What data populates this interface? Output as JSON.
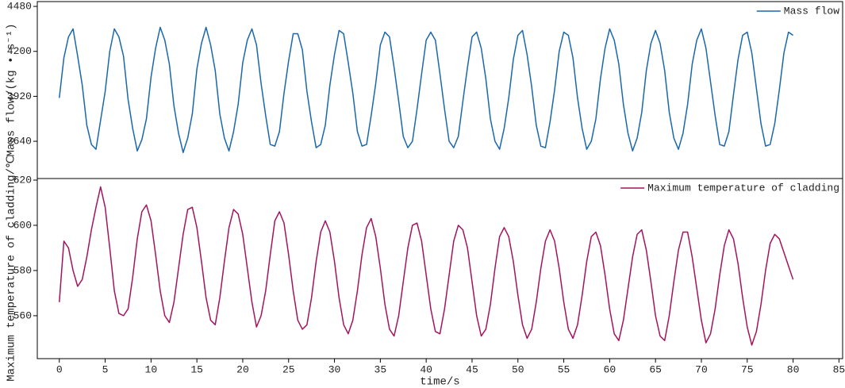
{
  "chart_data": [
    {
      "type": "line",
      "ylabel": "Mass flow/(kg • s⁻¹)",
      "legend": "upper right",
      "xlim": [
        -2.4,
        85.4
      ],
      "ylim": [
        3408,
        4510
      ],
      "yticks": [
        3640,
        3920,
        4200,
        4480
      ],
      "x": [
        0,
        0.5,
        1,
        1.5,
        2,
        2.5,
        3,
        3.5,
        4,
        4.5,
        5,
        5.5,
        6,
        6.5,
        7,
        7.5,
        8,
        8.5,
        9,
        9.5,
        10,
        10.5,
        11,
        11.5,
        12,
        12.5,
        13,
        13.5,
        14,
        14.5,
        15,
        15.5,
        16,
        16.5,
        17,
        17.5,
        18,
        18.5,
        19,
        19.5,
        20,
        20.5,
        21,
        21.5,
        22,
        22.5,
        23,
        23.5,
        24,
        24.5,
        25,
        25.5,
        26,
        26.5,
        27,
        27.5,
        28,
        28.5,
        29,
        29.5,
        30,
        30.5,
        31,
        31.5,
        32,
        32.5,
        33,
        33.5,
        34,
        34.5,
        35,
        35.5,
        36,
        36.5,
        37,
        37.5,
        38,
        38.5,
        39,
        39.5,
        40,
        40.5,
        41,
        41.5,
        42,
        42.5,
        43,
        43.5,
        44,
        44.5,
        45,
        45.5,
        46,
        46.5,
        47,
        47.5,
        48,
        48.5,
        49,
        49.5,
        50,
        50.5,
        51,
        51.5,
        52,
        52.5,
        53,
        53.5,
        54,
        54.5,
        55,
        55.5,
        56,
        56.5,
        57,
        57.5,
        58,
        58.5,
        59,
        59.5,
        60,
        60.5,
        61,
        61.5,
        62,
        62.5,
        63,
        63.5,
        64,
        64.5,
        65,
        65.5,
        66,
        66.5,
        67,
        67.5,
        68,
        68.5,
        69,
        69.5,
        70,
        70.5,
        71,
        71.5,
        72,
        72.5,
        73,
        73.5,
        74,
        74.5,
        75,
        75.5,
        76,
        76.5,
        77,
        77.5,
        78,
        78.5,
        79,
        79.5,
        80
      ],
      "series": [
        {
          "name": "Mass flow",
          "color": "#1a67ae",
          "values": [
            3910,
            4160,
            4290,
            4340,
            4170,
            3990,
            3740,
            3620,
            3590,
            3770,
            3950,
            4200,
            4340,
            4290,
            4170,
            3900,
            3720,
            3580,
            3650,
            3780,
            4040,
            4220,
            4350,
            4270,
            4120,
            3860,
            3690,
            3570,
            3660,
            3810,
            4090,
            4250,
            4350,
            4240,
            4080,
            3810,
            3660,
            3580,
            3700,
            3870,
            4130,
            4270,
            4340,
            4240,
            4000,
            3800,
            3620,
            3610,
            3700,
            3940,
            4140,
            4310,
            4310,
            4210,
            3950,
            3760,
            3600,
            3620,
            3740,
            3990,
            4180,
            4330,
            4310,
            4130,
            3940,
            3700,
            3610,
            3620,
            3800,
            4000,
            4240,
            4320,
            4290,
            4100,
            3890,
            3670,
            3600,
            3640,
            3840,
            4060,
            4270,
            4320,
            4270,
            4060,
            3840,
            3640,
            3600,
            3670,
            3890,
            4100,
            4290,
            4320,
            4220,
            4030,
            3780,
            3640,
            3590,
            3720,
            3910,
            4150,
            4300,
            4330,
            4180,
            3980,
            3740,
            3610,
            3600,
            3760,
            3960,
            4200,
            4320,
            4300,
            4160,
            3910,
            3720,
            3590,
            3640,
            3780,
            4030,
            4220,
            4340,
            4270,
            4120,
            3870,
            3690,
            3580,
            3660,
            3820,
            4080,
            4250,
            4330,
            4250,
            4080,
            3820,
            3660,
            3590,
            3690,
            3870,
            4120,
            4270,
            4340,
            4220,
            4010,
            3800,
            3620,
            3610,
            3700,
            3930,
            4150,
            4300,
            4320,
            4190,
            3970,
            3750,
            3610,
            3620,
            3750,
            3960,
            4190,
            4320,
            4300
          ]
        }
      ]
    },
    {
      "type": "line",
      "ylabel": "Maximum temperature of cladding/℃",
      "xlabel": "time/s",
      "legend": "upper right",
      "xlim": [
        -2.4,
        85.4
      ],
      "ylim": [
        541,
        620.7
      ],
      "yticks": [
        560,
        580,
        600,
        620
      ],
      "xticks": [
        0,
        5,
        10,
        15,
        20,
        25,
        30,
        35,
        40,
        45,
        50,
        55,
        60,
        65,
        70,
        75,
        80,
        85
      ],
      "x": [
        0,
        0.5,
        1,
        1.5,
        2,
        2.5,
        3,
        3.5,
        4,
        4.5,
        5,
        5.5,
        6,
        6.5,
        7,
        7.5,
        8,
        8.5,
        9,
        9.5,
        10,
        10.5,
        11,
        11.5,
        12,
        12.5,
        13,
        13.5,
        14,
        14.5,
        15,
        15.5,
        16,
        16.5,
        17,
        17.5,
        18,
        18.5,
        19,
        19.5,
        20,
        20.5,
        21,
        21.5,
        22,
        22.5,
        23,
        23.5,
        24,
        24.5,
        25,
        25.5,
        26,
        26.5,
        27,
        27.5,
        28,
        28.5,
        29,
        29.5,
        30,
        30.5,
        31,
        31.5,
        32,
        32.5,
        33,
        33.5,
        34,
        34.5,
        35,
        35.5,
        36,
        36.5,
        37,
        37.5,
        38,
        38.5,
        39,
        39.5,
        40,
        40.5,
        41,
        41.5,
        42,
        42.5,
        43,
        43.5,
        44,
        44.5,
        45,
        45.5,
        46,
        46.5,
        47,
        47.5,
        48,
        48.5,
        49,
        49.5,
        50,
        50.5,
        51,
        51.5,
        52,
        52.5,
        53,
        53.5,
        54,
        54.5,
        55,
        55.5,
        56,
        56.5,
        57,
        57.5,
        58,
        58.5,
        59,
        59.5,
        60,
        60.5,
        61,
        61.5,
        62,
        62.5,
        63,
        63.5,
        64,
        64.5,
        65,
        65.5,
        66,
        66.5,
        67,
        67.5,
        68,
        68.5,
        69,
        69.5,
        70,
        70.5,
        71,
        71.5,
        72,
        72.5,
        73,
        73.5,
        74,
        74.5,
        75,
        75.5,
        76,
        76.5,
        77,
        77.5,
        78,
        78.5,
        79,
        79.5,
        80
      ],
      "series": [
        {
          "name": "Maximum temperature of cladding",
          "color": "#a3145f",
          "values": [
            566,
            593,
            590,
            580,
            573,
            576,
            586,
            598,
            608,
            617,
            608,
            590,
            571,
            561,
            560,
            563,
            577,
            594,
            606,
            609,
            602,
            587,
            571,
            560,
            557,
            566,
            581,
            596,
            607,
            608,
            599,
            584,
            568,
            558,
            556,
            568,
            584,
            599,
            607,
            605,
            596,
            581,
            566,
            555,
            560,
            571,
            587,
            602,
            606,
            601,
            587,
            571,
            558,
            554,
            556,
            568,
            584,
            597,
            602,
            597,
            584,
            568,
            556,
            552,
            558,
            571,
            587,
            599,
            603,
            595,
            581,
            565,
            554,
            551,
            560,
            575,
            590,
            600,
            601,
            593,
            578,
            563,
            553,
            552,
            563,
            578,
            593,
            600,
            598,
            590,
            575,
            560,
            551,
            554,
            565,
            581,
            595,
            599,
            595,
            584,
            569,
            556,
            550,
            554,
            566,
            581,
            593,
            598,
            593,
            581,
            566,
            554,
            550,
            556,
            569,
            584,
            595,
            597,
            591,
            578,
            563,
            552,
            549,
            558,
            572,
            586,
            596,
            598,
            589,
            575,
            560,
            551,
            549,
            560,
            575,
            589,
            597,
            597,
            586,
            572,
            558,
            548,
            552,
            563,
            578,
            591,
            598,
            594,
            583,
            568,
            555,
            547,
            553,
            565,
            580,
            592,
            596,
            594,
            588,
            582,
            576
          ]
        }
      ]
    }
  ]
}
